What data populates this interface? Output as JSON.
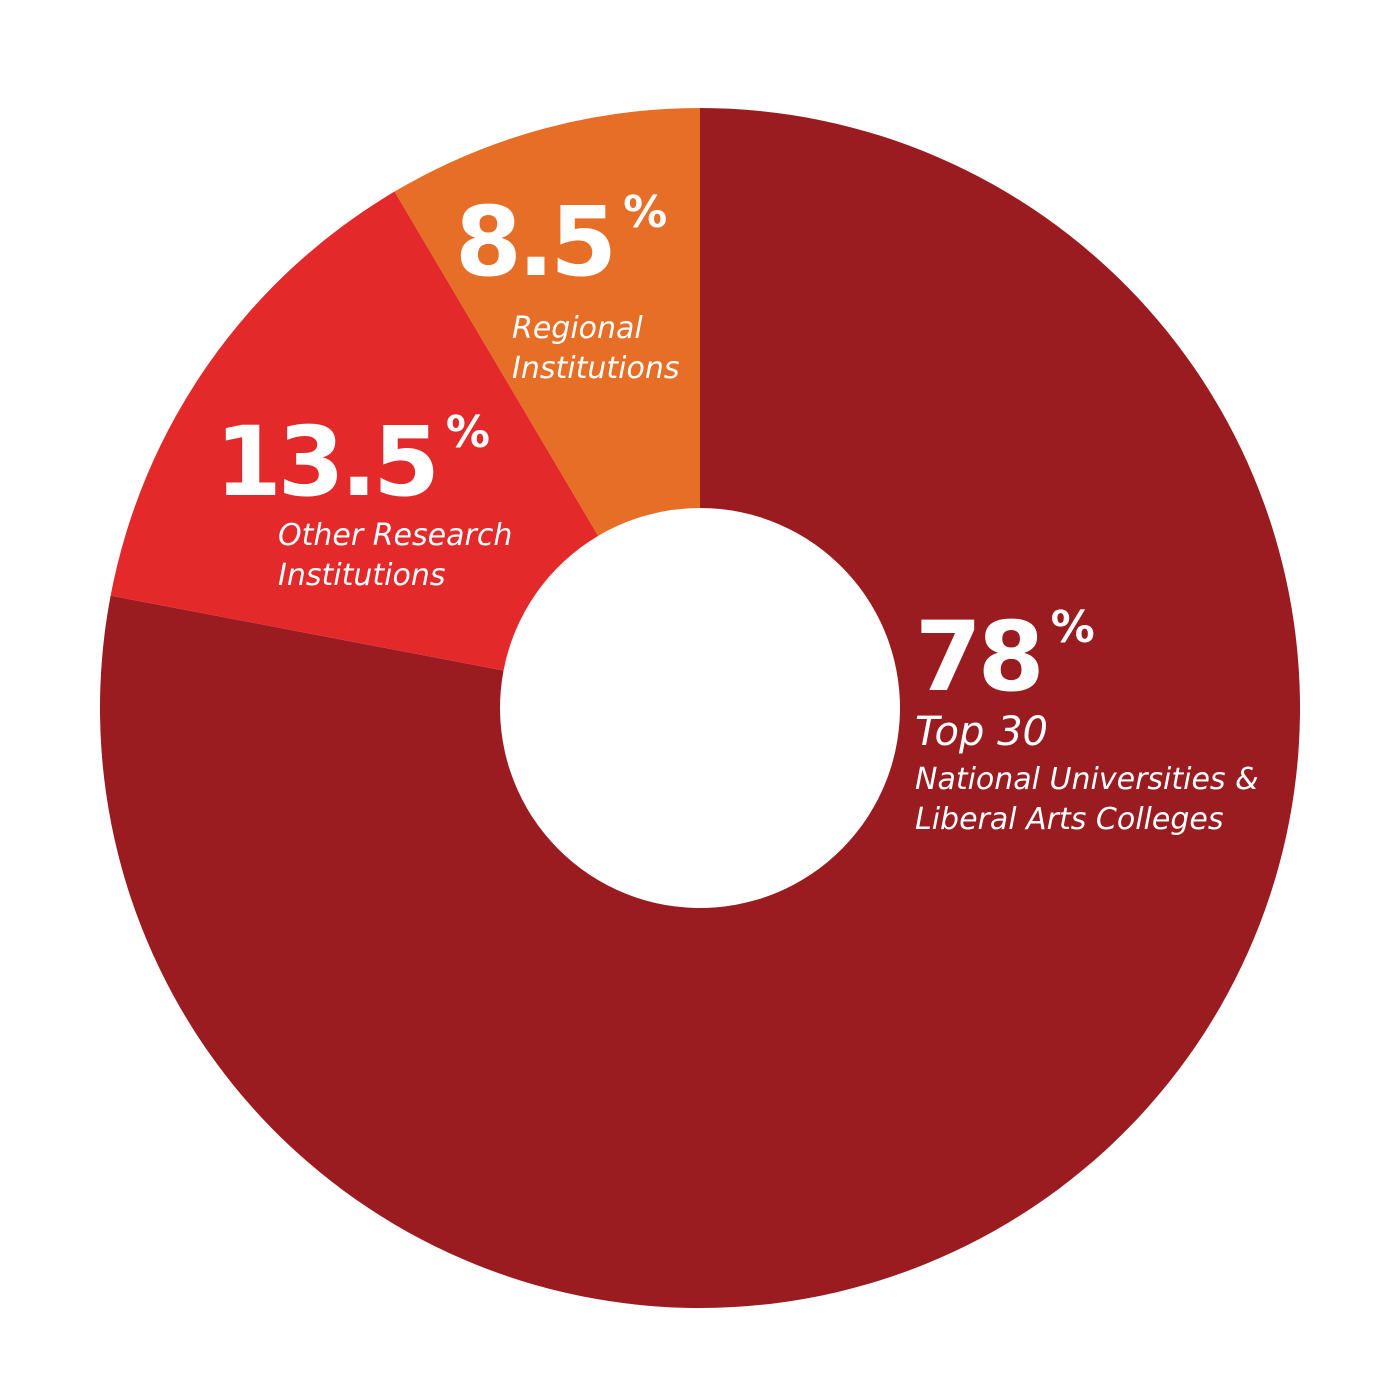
{
  "chart_data": {
    "type": "donut",
    "categories": [
      "Top 30\nNational Universities &\nLiberal Arts Colleges",
      "Other Research\nInstitutions",
      "Regional\nInstitutions"
    ],
    "values": [
      78,
      13.5,
      8.5
    ],
    "value_labels": [
      "78%",
      "13.5%",
      "8.5%"
    ],
    "colors": [
      "#9a1c21",
      "#e4292b",
      "#e66e27"
    ]
  }
}
